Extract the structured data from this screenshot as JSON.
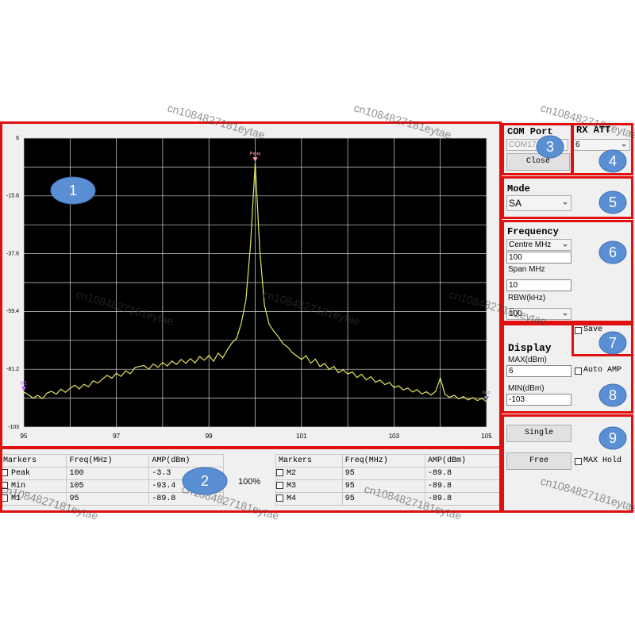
{
  "chart_data": {
    "type": "line",
    "x": [
      95.0,
      95.1,
      95.2,
      95.3,
      95.4,
      95.5,
      95.6,
      95.7,
      95.8,
      95.9,
      96.0,
      96.1,
      96.2,
      96.3,
      96.4,
      96.5,
      96.6,
      96.7,
      96.8,
      96.9,
      97.0,
      97.1,
      97.2,
      97.3,
      97.4,
      97.5,
      97.6,
      97.7,
      97.8,
      97.9,
      98.0,
      98.1,
      98.2,
      98.3,
      98.4,
      98.5,
      98.6,
      98.7,
      98.8,
      98.9,
      99.0,
      99.1,
      99.2,
      99.3,
      99.4,
      99.5,
      99.6,
      99.7,
      99.8,
      99.9,
      100.0,
      100.1,
      100.2,
      100.3,
      100.4,
      100.5,
      100.6,
      100.7,
      100.8,
      100.9,
      101.0,
      101.1,
      101.2,
      101.3,
      101.4,
      101.5,
      101.6,
      101.7,
      101.8,
      101.9,
      102.0,
      102.1,
      102.2,
      102.3,
      102.4,
      102.5,
      102.6,
      102.7,
      102.8,
      102.9,
      103.0,
      103.1,
      103.2,
      103.3,
      103.4,
      103.5,
      103.6,
      103.7,
      103.8,
      103.9,
      104.0,
      104.1,
      104.2,
      104.3,
      104.4,
      104.5,
      104.6,
      104.7,
      104.8,
      104.9,
      105.0
    ],
    "series": [
      {
        "color": "#e6e65c",
        "values": [
          -89.8,
          -90.8,
          -92.1,
          -91.0,
          -92.3,
          -90.2,
          -89.5,
          -90.6,
          -88.7,
          -89.9,
          -88.4,
          -87.2,
          -88.6,
          -86.9,
          -87.8,
          -85.6,
          -86.4,
          -84.9,
          -83.5,
          -84.6,
          -82.7,
          -83.9,
          -81.8,
          -82.9,
          -80.6,
          -80.1,
          -79.8,
          -81.2,
          -79.2,
          -80.5,
          -78.6,
          -80.0,
          -78.1,
          -79.4,
          -77.5,
          -79.0,
          -77.2,
          -78.8,
          -76.4,
          -77.8,
          -76.0,
          -78.2,
          -75.1,
          -76.9,
          -73.8,
          -71.2,
          -69.5,
          -63.8,
          -55.0,
          -34.0,
          -3.3,
          -36.5,
          -57.0,
          -64.2,
          -66.8,
          -68.9,
          -71.5,
          -72.8,
          -74.9,
          -76.2,
          -77.5,
          -76.1,
          -78.9,
          -77.4,
          -80.2,
          -79.0,
          -81.3,
          -80.1,
          -82.5,
          -81.4,
          -83.0,
          -82.2,
          -84.3,
          -83.1,
          -85.2,
          -84.0,
          -86.1,
          -85.3,
          -87.0,
          -86.2,
          -88.1,
          -87.4,
          -89.0,
          -88.3,
          -89.8,
          -88.9,
          -90.5,
          -89.7,
          -90.9,
          -89.5,
          -84.5,
          -90.6,
          -91.8,
          -91.0,
          -92.4,
          -91.5,
          -92.8,
          -91.9,
          -93.0,
          -92.2,
          -93.4
        ]
      }
    ],
    "xlim": [
      95,
      105
    ],
    "xticks": [
      95,
      97,
      99,
      101,
      103,
      105
    ],
    "x_minor_ticks": [
      96,
      98,
      100,
      102,
      104
    ],
    "ylim": [
      -103,
      6
    ],
    "yticks": [
      -103,
      -81.2,
      -59.4,
      -37.6,
      -15.8,
      6
    ],
    "y_minor_ticks": [
      -92.1,
      -70.3,
      -48.5,
      -26.7,
      -4.9
    ],
    "grid": true,
    "markers": [
      {
        "label": "Peak",
        "x": 100,
        "y": -3.3,
        "color": "#ff9aa8"
      },
      {
        "label": "M1",
        "x": 95,
        "y": -89.8,
        "color": "#c060ff"
      },
      {
        "label": "Min",
        "x": 105,
        "y": -93.4,
        "color": "#8888aa"
      }
    ]
  },
  "marker_table": {
    "headers": [
      "Markers",
      "Freq(MHz)",
      "AMP(dBm)"
    ],
    "left": [
      [
        "Peak",
        100,
        -3.3
      ],
      [
        "Min",
        105,
        -93.4
      ],
      [
        "M1",
        95,
        -89.8
      ]
    ],
    "right": [
      [
        "M2",
        95,
        -89.8
      ],
      [
        "M3",
        95,
        -89.8
      ],
      [
        "M4",
        95,
        -89.8
      ]
    ]
  },
  "zoom": "100%",
  "controls": {
    "com_port": {
      "title": "COM Port",
      "port": "COM17",
      "button": "Close"
    },
    "rx_att": {
      "title": "RX ATT",
      "value": 6
    },
    "mode": {
      "title": "Mode",
      "value": "SA"
    },
    "frequency": {
      "title": "Frequency",
      "centre_label": "Centre MHz",
      "centre": 100,
      "span_label": "Span MHz",
      "span": 10,
      "rbw_label": "RBW(kHz)",
      "rbw": 100
    },
    "save": "Save",
    "display": {
      "title": "Display",
      "max_label": "MAX(dBm)",
      "max": 6,
      "auto_amp": "Auto AMP",
      "min_label": "MIN(dBm)",
      "min": -103
    },
    "buttons": {
      "single": "Single",
      "free": "Free",
      "max_hold": "MAX Hold"
    }
  },
  "callouts": [
    "1",
    "2",
    "3",
    "4",
    "5",
    "6",
    "7",
    "8",
    "9"
  ],
  "watermark": "cn1084827181eytae"
}
